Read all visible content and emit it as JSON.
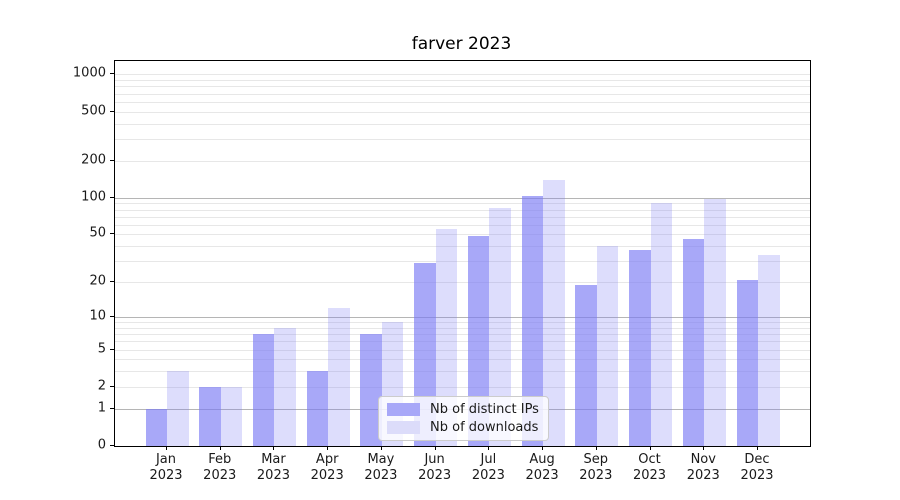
{
  "title": "farver 2023",
  "chart_data": {
    "type": "bar",
    "title": "farver 2023",
    "categories": [
      "Jan",
      "Feb",
      "Mar",
      "Apr",
      "May",
      "Jun",
      "Jul",
      "Aug",
      "Sep",
      "Oct",
      "Nov",
      "Dec"
    ],
    "year": "2023",
    "series": [
      {
        "name": "Nb of distinct IPs",
        "color": "rgba(122,122,245,0.65)",
        "swatch_color": "#a8a8f8",
        "values": [
          1,
          2,
          7,
          3,
          7,
          29,
          49,
          104,
          19,
          37,
          46,
          21
        ]
      },
      {
        "name": "Nb of downloads",
        "color": "rgba(122,122,245,0.26)",
        "swatch_color": "#dcdcfa",
        "values": [
          3,
          2,
          8,
          12,
          9,
          55,
          83,
          140,
          40,
          90,
          97,
          34
        ]
      }
    ],
    "yscale": "log1p",
    "ylim": [
      0,
      1282
    ],
    "yticks": [
      1000,
      500,
      200,
      100,
      50,
      20,
      10,
      5,
      2,
      1,
      0
    ],
    "grid": {
      "major_lines": [
        1,
        10,
        100
      ],
      "minor_lines": "log decades 2-9, 20-90, 200-1000",
      "orientation": "horizontal"
    },
    "legend_position": "lower center",
    "xlabel": "",
    "ylabel": ""
  }
}
